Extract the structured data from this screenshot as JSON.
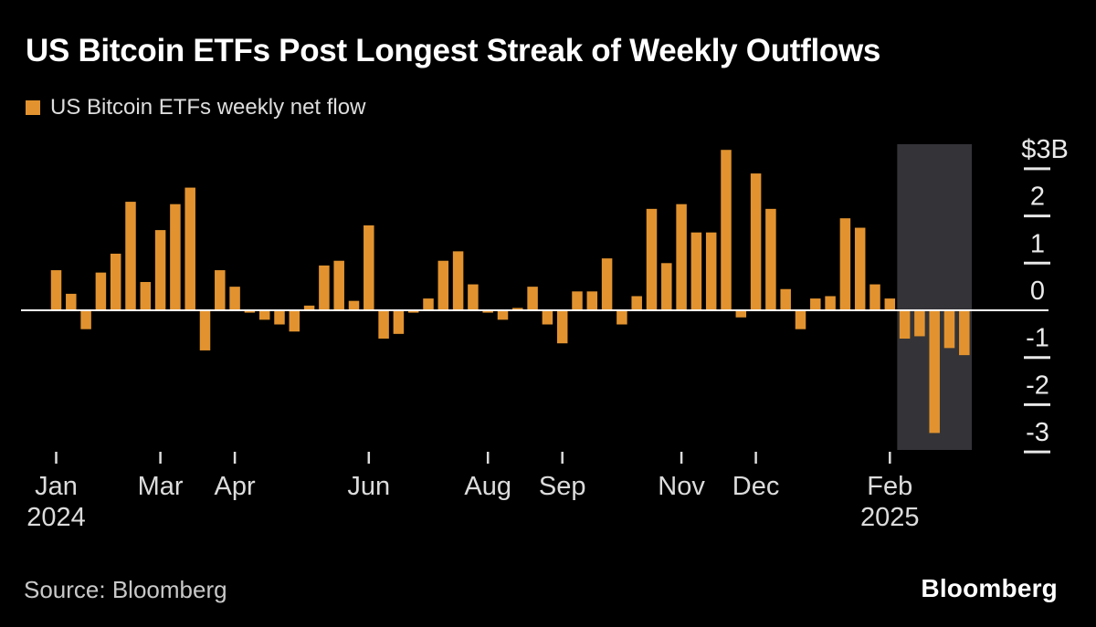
{
  "header": {
    "title": "US Bitcoin ETFs Post Longest Streak of Weekly Outflows"
  },
  "legend": {
    "label": "US Bitcoin ETFs weekly net flow"
  },
  "footer": {
    "source": "Source: Bloomberg",
    "brand": "Bloomberg"
  },
  "colors": {
    "background": "#000000",
    "bar": "#E2932F",
    "highlight_region": "#343438",
    "zero_line": "#FFFFFF",
    "y_tick": "#E8E8E8",
    "x_tick": "#DCDCDC",
    "title_text": "#FFFFFF",
    "y_label_text": "#EAEAEA",
    "x_label_text": "#DCDCDC",
    "source_text": "#C9C9C9"
  },
  "chart_data": {
    "type": "bar",
    "title": "US Bitcoin ETFs Post Longest Streak of Weekly Outflows",
    "series_name": "US Bitcoin ETFs weekly net flow",
    "unit": "billions of US dollars",
    "xlabel": "",
    "ylabel": "$B",
    "x_description": "one bar per week, Jan 2024 through early Mar 2025",
    "values": [
      0.85,
      0.35,
      -0.4,
      0.8,
      1.2,
      2.3,
      0.6,
      1.7,
      2.25,
      2.6,
      -0.85,
      0.85,
      0.5,
      -0.05,
      -0.2,
      -0.3,
      -0.45,
      0.1,
      0.95,
      1.05,
      0.2,
      1.8,
      -0.6,
      -0.5,
      -0.05,
      0.25,
      1.05,
      1.25,
      0.55,
      -0.05,
      -0.2,
      0.05,
      0.5,
      -0.3,
      -0.7,
      0.4,
      0.4,
      1.1,
      -0.3,
      0.3,
      2.15,
      1.0,
      2.25,
      1.65,
      1.65,
      3.4,
      -0.15,
      2.9,
      2.15,
      0.45,
      -0.4,
      0.25,
      0.3,
      1.95,
      1.75,
      0.55,
      0.25,
      -0.6,
      -0.55,
      -2.6,
      -0.8,
      -0.95
    ],
    "x_ticks": [
      {
        "index": 0,
        "label": "Jan",
        "sublabel": "2024"
      },
      {
        "index": 7,
        "label": "Mar"
      },
      {
        "index": 12,
        "label": "Apr"
      },
      {
        "index": 21,
        "label": "Jun"
      },
      {
        "index": 29,
        "label": "Aug"
      },
      {
        "index": 34,
        "label": "Sep"
      },
      {
        "index": 42,
        "label": "Nov"
      },
      {
        "index": 47,
        "label": "Dec"
      },
      {
        "index": 56,
        "label": "Feb",
        "sublabel": "2025"
      }
    ],
    "y_ticks": [
      {
        "value": 3,
        "label": "$3B"
      },
      {
        "value": 2,
        "label": "2"
      },
      {
        "value": 1,
        "label": "1"
      },
      {
        "value": 0,
        "label": "0"
      },
      {
        "value": -1,
        "label": "-1"
      },
      {
        "value": -2,
        "label": "-2"
      },
      {
        "value": -3,
        "label": "-3"
      }
    ],
    "ylim": [
      -3.5,
      3.6
    ],
    "grid": false,
    "legend_position": "top-left",
    "highlight": {
      "start_index": 57,
      "end_index": 61,
      "description": "final streak of weekly outflows"
    }
  }
}
